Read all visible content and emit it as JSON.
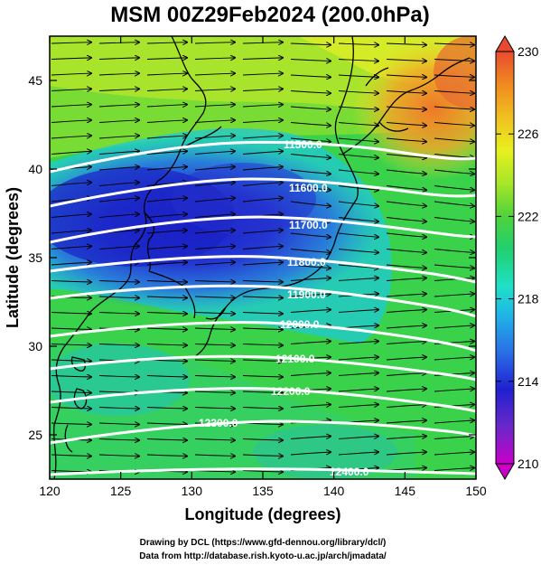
{
  "title": "MSM 00Z29Feb2024 (200.0hPa)",
  "xaxis": {
    "label": "Longitude (degrees)",
    "range": [
      120,
      150
    ],
    "ticks": [
      "120",
      "125",
      "130",
      "135",
      "140",
      "145",
      "150"
    ]
  },
  "yaxis": {
    "label": "Latitude  (degrees)",
    "range": [
      22.5,
      47.5
    ],
    "ticks": [
      "25",
      "30",
      "35",
      "40",
      "45"
    ]
  },
  "colorbar": {
    "range": [
      210,
      230
    ],
    "ticks": [
      "210",
      "214",
      "218",
      "222",
      "226",
      "230"
    ],
    "colors": [
      "#c800c8",
      "#6a28c8",
      "#2020d0",
      "#2a6ee6",
      "#20b4e6",
      "#20e0c8",
      "#20d070",
      "#50d23c",
      "#a6e628",
      "#e8f020",
      "#f0c020",
      "#f08a20",
      "#e84a30"
    ]
  },
  "contours": {
    "color": "#ffffff",
    "lines": [
      {
        "label": "11500.0"
      },
      {
        "label": "11600.0"
      },
      {
        "label": "11700.0"
      },
      {
        "label": "11800.0"
      },
      {
        "label": "11900.0"
      },
      {
        "label": "12000.0"
      },
      {
        "label": "12100.0"
      },
      {
        "label": "12200.0"
      },
      {
        "label": "12300.0"
      },
      {
        "label": "12400.0"
      }
    ]
  },
  "credits": [
    "Drawing by DCL (https://www.gfd-dennou.org/library/dcl/)",
    "Data from http://database.rish.kyoto-u.ac.jp/arch/jmadata/"
  ]
}
